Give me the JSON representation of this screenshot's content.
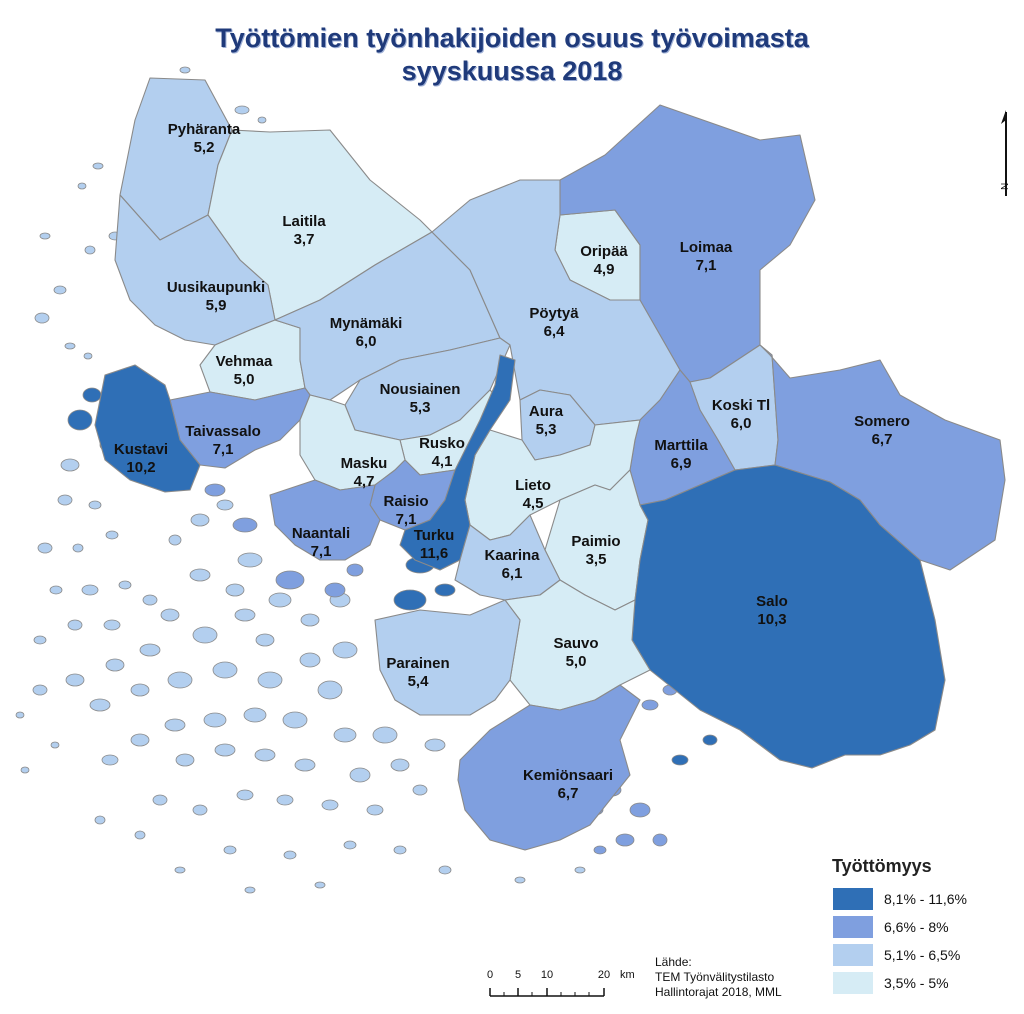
{
  "title": {
    "line1": "Työttömien työnhakijoiden osuus työvoimasta",
    "line2": "syyskuussa 2018"
  },
  "colors": {
    "class1": "#2f6fb6",
    "class2": "#7f9fdf",
    "class3": "#b3cfef",
    "class4": "#d6ecf5",
    "border": "#8a8a8a"
  },
  "municipalities": [
    {
      "name": "Pyhäranta",
      "value": "5,2",
      "class": "class3"
    },
    {
      "name": "Laitila",
      "value": "3,7",
      "class": "class4"
    },
    {
      "name": "Uusikaupunki",
      "value": "5,9",
      "class": "class3"
    },
    {
      "name": "Vehmaa",
      "value": "5,0",
      "class": "class4"
    },
    {
      "name": "Mynämäki",
      "value": "6,0",
      "class": "class3"
    },
    {
      "name": "Oripää",
      "value": "4,9",
      "class": "class4"
    },
    {
      "name": "Loimaa",
      "value": "7,1",
      "class": "class2"
    },
    {
      "name": "Pöytyä",
      "value": "6,4",
      "class": "class3"
    },
    {
      "name": "Nousiainen",
      "value": "5,3",
      "class": "class3"
    },
    {
      "name": "Aura",
      "value": "5,3",
      "class": "class3"
    },
    {
      "name": "Koski Tl",
      "value": "6,0",
      "class": "class3"
    },
    {
      "name": "Somero",
      "value": "6,7",
      "class": "class2"
    },
    {
      "name": "Taivassalo",
      "value": "7,1",
      "class": "class2"
    },
    {
      "name": "Kustavi",
      "value": "10,2",
      "class": "class1"
    },
    {
      "name": "Rusko",
      "value": "4,1",
      "class": "class4"
    },
    {
      "name": "Masku",
      "value": "4,7",
      "class": "class4"
    },
    {
      "name": "Marttila",
      "value": "6,9",
      "class": "class2"
    },
    {
      "name": "Lieto",
      "value": "4,5",
      "class": "class4"
    },
    {
      "name": "Raisio",
      "value": "7,1",
      "class": "class2"
    },
    {
      "name": "Naantali",
      "value": "7,1",
      "class": "class2"
    },
    {
      "name": "Turku",
      "value": "11,6",
      "class": "class1"
    },
    {
      "name": "Paimio",
      "value": "3,5",
      "class": "class4"
    },
    {
      "name": "Kaarina",
      "value": "6,1",
      "class": "class3"
    },
    {
      "name": "Salo",
      "value": "10,3",
      "class": "class1"
    },
    {
      "name": "Sauvo",
      "value": "5,0",
      "class": "class4"
    },
    {
      "name": "Parainen",
      "value": "5,4",
      "class": "class3"
    },
    {
      "name": "Kemiönsaari",
      "value": "6,7",
      "class": "class2"
    }
  ],
  "legend": {
    "title": "Työttömyys",
    "items": [
      {
        "label": "8,1% - 11,6%",
        "class": "class1"
      },
      {
        "label": "6,6% - 8%",
        "class": "class2"
      },
      {
        "label": "5,1% - 6,5%",
        "class": "class3"
      },
      {
        "label": "3,5% - 5%",
        "class": "class4"
      }
    ]
  },
  "scale": {
    "ticks": [
      "0",
      "5",
      "10",
      "20"
    ],
    "unit": "km"
  },
  "north_label": "N",
  "source": {
    "line1": "Lähde:",
    "line2": "TEM Työnvälitystilasto",
    "line3": "Hallintorajat 2018, MML"
  }
}
